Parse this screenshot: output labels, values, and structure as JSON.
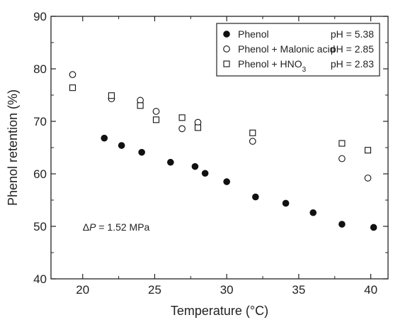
{
  "chart_data": {
    "type": "scatter",
    "xlabel": "Temperature (°C)",
    "ylabel": "Phenol retention (%)",
    "xlim": [
      17.8,
      41.2
    ],
    "ylim": [
      40,
      90
    ],
    "xticks": [
      20,
      25,
      30,
      35,
      40
    ],
    "yticks": [
      40,
      50,
      60,
      70,
      80,
      90
    ],
    "xtick_labels": [
      "20",
      "25",
      "30",
      "35",
      "40"
    ],
    "ytick_labels": [
      "40",
      "50",
      "60",
      "70",
      "80",
      "90"
    ],
    "grid": false,
    "legend_position": "top-right",
    "series": [
      {
        "name": "Phenol",
        "name_sub": "",
        "marker": "filled-circle",
        "ph": "pH = 5.38",
        "points": [
          [
            21.5,
            66.8
          ],
          [
            22.7,
            65.4
          ],
          [
            24.1,
            64.1
          ],
          [
            26.1,
            62.2
          ],
          [
            27.8,
            61.4
          ],
          [
            28.5,
            60.1
          ],
          [
            30.0,
            58.5
          ],
          [
            32.0,
            55.6
          ],
          [
            34.1,
            54.4
          ],
          [
            36.0,
            52.6
          ],
          [
            38.0,
            50.4
          ],
          [
            40.2,
            49.8
          ]
        ]
      },
      {
        "name": "Phenol + Malonic acid",
        "name_sub": "",
        "marker": "open-circle",
        "ph": "pH = 2.85",
        "points": [
          [
            19.3,
            78.9
          ],
          [
            22.0,
            74.3
          ],
          [
            24.0,
            74.0
          ],
          [
            25.1,
            71.9
          ],
          [
            26.9,
            68.6
          ],
          [
            28.0,
            69.8
          ],
          [
            31.8,
            66.2
          ],
          [
            38.0,
            62.9
          ],
          [
            39.8,
            59.2
          ]
        ]
      },
      {
        "name": "Phenol + HNO",
        "name_sub": "3",
        "marker": "open-square",
        "ph": "pH = 2.83",
        "points": [
          [
            19.3,
            76.4
          ],
          [
            22.0,
            74.9
          ],
          [
            24.0,
            73.0
          ],
          [
            25.1,
            70.3
          ],
          [
            26.9,
            70.7
          ],
          [
            28.0,
            68.8
          ],
          [
            31.8,
            67.8
          ],
          [
            38.0,
            65.8
          ],
          [
            39.8,
            64.5
          ]
        ]
      }
    ],
    "annotations": [
      {
        "text": "P = 1.52 MPa",
        "prefix": "Δ",
        "italic_part": "P",
        "rest": " = 1.52 MPa",
        "x": 20.0,
        "y": 49.2
      }
    ]
  }
}
